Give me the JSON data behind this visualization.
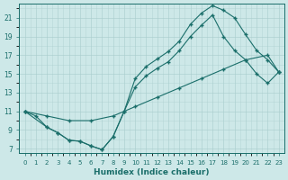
{
  "xlabel": "Humidex (Indice chaleur)",
  "bg_color": "#cde8e8",
  "line_color": "#1a6e6a",
  "xlim": [
    -0.5,
    23.5
  ],
  "ylim": [
    6.5,
    22.5
  ],
  "xticks": [
    0,
    1,
    2,
    3,
    4,
    5,
    6,
    7,
    8,
    9,
    10,
    11,
    12,
    13,
    14,
    15,
    16,
    17,
    18,
    19,
    20,
    21,
    22,
    23
  ],
  "yticks": [
    7,
    9,
    11,
    13,
    15,
    17,
    19,
    21
  ],
  "line1_x": [
    0,
    2,
    4,
    6,
    8,
    10,
    12,
    14,
    16,
    18,
    20,
    22,
    23
  ],
  "line1_y": [
    11,
    10.5,
    10,
    10,
    10.5,
    11.5,
    12.5,
    13.5,
    14.5,
    15.5,
    16.5,
    17.0,
    15.2
  ],
  "line2_x": [
    0,
    1,
    2,
    3,
    4,
    5,
    6,
    7,
    8,
    9,
    10,
    11,
    12,
    13,
    14,
    15,
    16,
    17,
    18,
    19,
    20,
    21,
    22,
    23
  ],
  "line2_y": [
    11,
    10.5,
    9.3,
    8.7,
    7.9,
    7.8,
    7.3,
    6.9,
    8.3,
    11.0,
    14.5,
    15.8,
    16.6,
    17.4,
    18.5,
    20.3,
    21.5,
    22.3,
    21.8,
    21.0,
    19.2,
    17.5,
    16.5,
    15.2
  ],
  "line3_x": [
    0,
    2,
    3,
    4,
    5,
    6,
    7,
    8,
    9,
    10,
    11,
    12,
    13,
    14,
    15,
    16,
    17,
    18,
    19,
    20,
    21,
    22,
    23
  ],
  "line3_y": [
    11,
    9.3,
    8.7,
    7.9,
    7.8,
    7.3,
    6.9,
    8.3,
    11.0,
    13.6,
    14.8,
    15.6,
    16.3,
    17.5,
    19.0,
    20.2,
    21.3,
    19.0,
    17.5,
    16.5,
    15.0,
    14.0,
    15.2
  ]
}
